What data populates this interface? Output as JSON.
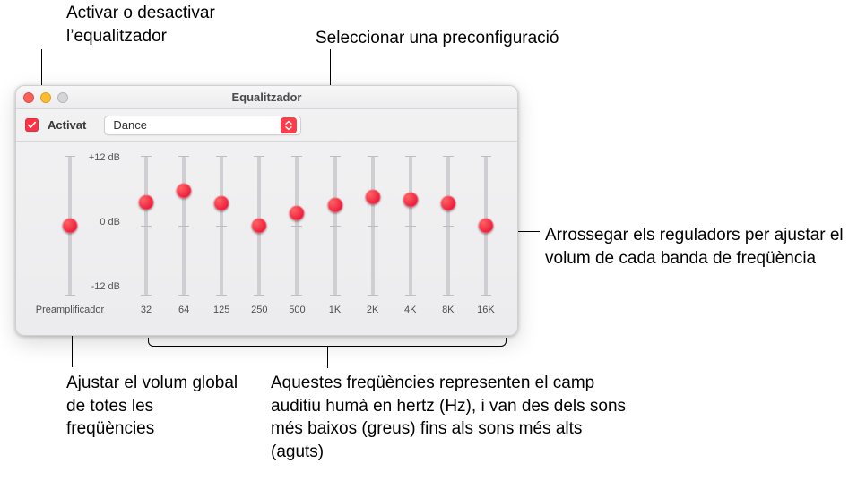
{
  "colors": {
    "accent": "#fc3345",
    "traffic_close": "#ff5f57",
    "traffic_min": "#febc2e",
    "traffic_disabled": "#d6d6d8",
    "select_caret_bg": "#fc3c4b",
    "knob": "#e7142f"
  },
  "window": {
    "title": "Equalitzador"
  },
  "toolbar": {
    "activat_label": "Activat",
    "activat_checked": true,
    "preset_value": "Dance"
  },
  "eq": {
    "db_labels": [
      "+12 dB",
      "0 dB",
      "-12 dB"
    ],
    "preamp_label": "Preamplificador",
    "preamp_value": 0,
    "min_db": -12,
    "max_db": 12,
    "bands": [
      {
        "freq": "32",
        "value": 4.0
      },
      {
        "freq": "64",
        "value": 6.0
      },
      {
        "freq": "125",
        "value": 3.8
      },
      {
        "freq": "250",
        "value": 0.0
      },
      {
        "freq": "500",
        "value": 2.2
      },
      {
        "freq": "1K",
        "value": 3.5
      },
      {
        "freq": "2K",
        "value": 5.0
      },
      {
        "freq": "4K",
        "value": 4.5
      },
      {
        "freq": "8K",
        "value": 3.8
      },
      {
        "freq": "16K",
        "value": 0.0
      }
    ]
  },
  "callouts": {
    "toggle": "Activar o desactivar l’equalitzador",
    "preset": "Seleccionar una preconfiguració",
    "drag": "Arrossegar els reguladors per ajustar el volum de cada banda de freqüència",
    "preamp": "Ajustar el volum global de totes les freqüències",
    "freqs": "Aquestes freqüències representen el camp auditiu humà en hertz (Hz), i van des dels sons més baixos (greus) fins als sons més alts (aguts)"
  }
}
